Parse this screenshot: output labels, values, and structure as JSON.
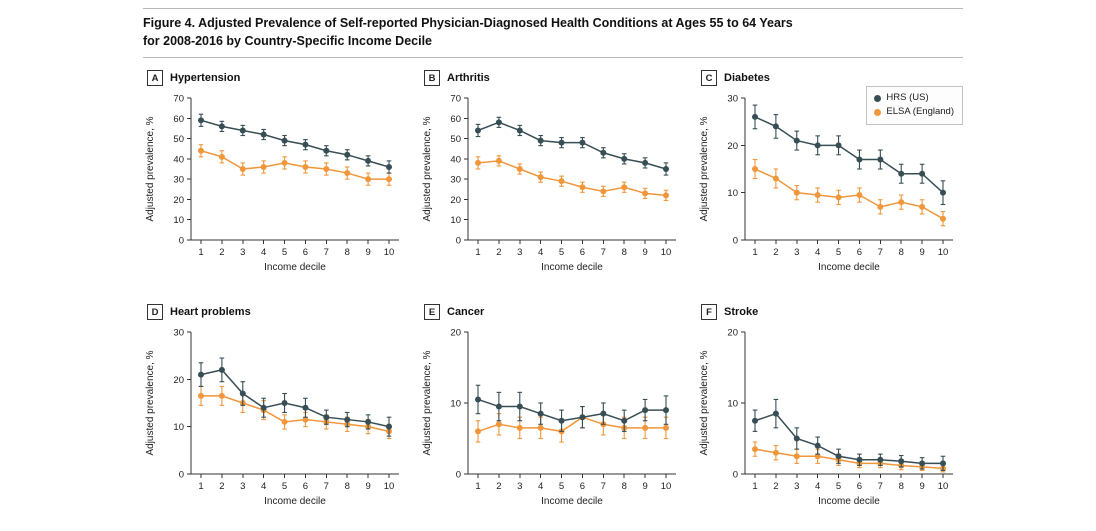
{
  "figure": {
    "title_line1": "Figure 4. Adjusted Prevalence of Self-reported Physician-Diagnosed Health Conditions at Ages 55 to 64 Years",
    "title_line2": "for 2008-2016 by Country-Specific Income Decile"
  },
  "colors": {
    "hrs": "#374E55",
    "elsa": "#F0973C"
  },
  "legend": {
    "items": [
      {
        "label": "HRS (US)",
        "color": "#374E55"
      },
      {
        "label": "ELSA (England)",
        "color": "#F0973C"
      }
    ]
  },
  "chart_data": [
    {
      "type": "line",
      "panel": "A",
      "title": "Hypertension",
      "xlabel": "Income decile",
      "ylabel": "Adjusted prevalence, %",
      "x": [
        1,
        2,
        3,
        4,
        5,
        6,
        7,
        8,
        9,
        10
      ],
      "ylim": [
        0,
        70
      ],
      "ytick_step": 10,
      "series": [
        {
          "name": "HRS (US)",
          "color": "#374E55",
          "values": [
            59,
            56,
            54,
            52,
            49,
            47,
            44,
            42,
            39,
            36
          ],
          "err": [
            3,
            2.5,
            2.5,
            2.5,
            2.5,
            2.5,
            2.5,
            2.5,
            2.5,
            3
          ]
        },
        {
          "name": "ELSA (England)",
          "color": "#F0973C",
          "values": [
            44,
            41,
            35,
            36,
            38,
            36,
            35,
            33,
            30,
            30
          ],
          "err": [
            3,
            3,
            3,
            3,
            3,
            3,
            3,
            3,
            3,
            3
          ]
        }
      ]
    },
    {
      "type": "line",
      "panel": "B",
      "title": "Arthritis",
      "xlabel": "Income decile",
      "ylabel": "Adjusted prevalence, %",
      "x": [
        1,
        2,
        3,
        4,
        5,
        6,
        7,
        8,
        9,
        10
      ],
      "ylim": [
        0,
        70
      ],
      "ytick_step": 10,
      "series": [
        {
          "name": "HRS (US)",
          "color": "#374E55",
          "values": [
            54,
            58,
            54,
            49,
            48,
            48,
            43,
            40,
            38,
            35
          ],
          "err": [
            3,
            2.5,
            2.5,
            2.5,
            2.5,
            2.5,
            2.5,
            2.5,
            2.5,
            3
          ]
        },
        {
          "name": "ELSA (England)",
          "color": "#F0973C",
          "values": [
            38,
            39,
            35,
            31,
            29,
            26,
            24,
            26,
            23,
            22
          ],
          "err": [
            3,
            2.5,
            2.5,
            2.5,
            2.5,
            2.5,
            2.5,
            2.5,
            2.5,
            2.5
          ]
        }
      ]
    },
    {
      "type": "line",
      "panel": "C",
      "title": "Diabetes",
      "xlabel": "Income decile",
      "ylabel": "Adjusted prevalence, %",
      "x": [
        1,
        2,
        3,
        4,
        5,
        6,
        7,
        8,
        9,
        10
      ],
      "ylim": [
        0,
        30
      ],
      "ytick_step": 10,
      "legend": true,
      "series": [
        {
          "name": "HRS (US)",
          "color": "#374E55",
          "values": [
            26,
            24,
            21,
            20,
            20,
            17,
            17,
            14,
            14,
            10
          ],
          "err": [
            2.5,
            2.5,
            2,
            2,
            2,
            2,
            2,
            2,
            2,
            2.5
          ]
        },
        {
          "name": "ELSA (England)",
          "color": "#F0973C",
          "values": [
            15,
            13,
            10,
            9.5,
            9,
            9.5,
            7,
            8,
            7,
            4.5
          ],
          "err": [
            2,
            2,
            1.5,
            1.5,
            1.5,
            1.5,
            1.5,
            1.5,
            1.5,
            1.5
          ]
        }
      ]
    },
    {
      "type": "line",
      "panel": "D",
      "title": "Heart problems",
      "xlabel": "Income decile",
      "ylabel": "Adjusted prevalence, %",
      "x": [
        1,
        2,
        3,
        4,
        5,
        6,
        7,
        8,
        9,
        10
      ],
      "ylim": [
        0,
        30
      ],
      "ytick_step": 10,
      "series": [
        {
          "name": "HRS (US)",
          "color": "#374E55",
          "values": [
            21,
            22,
            17,
            14,
            15,
            14,
            12,
            11.5,
            11,
            10
          ],
          "err": [
            2.5,
            2.5,
            2.5,
            2,
            2,
            2,
            1.5,
            1.5,
            1.5,
            2
          ]
        },
        {
          "name": "ELSA (England)",
          "color": "#F0973C",
          "values": [
            16.5,
            16.5,
            15,
            13.5,
            11,
            11.5,
            11,
            10.5,
            10,
            9
          ],
          "err": [
            2,
            2,
            2,
            2,
            1.5,
            1.5,
            1.5,
            1.5,
            1.5,
            1.5
          ]
        }
      ]
    },
    {
      "type": "line",
      "panel": "E",
      "title": "Cancer",
      "xlabel": "Income decile",
      "ylabel": "Adjusted prevalence, %",
      "x": [
        1,
        2,
        3,
        4,
        5,
        6,
        7,
        8,
        9,
        10
      ],
      "ylim": [
        0,
        20
      ],
      "ytick_step": 10,
      "series": [
        {
          "name": "HRS (US)",
          "color": "#374E55",
          "values": [
            10.5,
            9.5,
            9.5,
            8.5,
            7.5,
            8,
            8.5,
            7.5,
            9,
            9
          ],
          "err": [
            2,
            2,
            2,
            1.5,
            1.5,
            1.5,
            1.5,
            1.5,
            1.5,
            2
          ]
        },
        {
          "name": "ELSA (England)",
          "color": "#F0973C",
          "values": [
            6,
            7,
            6.5,
            6.5,
            6,
            8,
            7,
            6.5,
            6.5,
            6.5
          ],
          "err": [
            1.5,
            1.5,
            1.5,
            1.5,
            1.5,
            1.5,
            1.5,
            1.5,
            1.5,
            1.5
          ]
        }
      ]
    },
    {
      "type": "line",
      "panel": "F",
      "title": "Stroke",
      "xlabel": "Income decile",
      "ylabel": "Adjusted prevalence, %",
      "x": [
        1,
        2,
        3,
        4,
        5,
        6,
        7,
        8,
        9,
        10
      ],
      "ylim": [
        0,
        20
      ],
      "ytick_step": 10,
      "series": [
        {
          "name": "HRS (US)",
          "color": "#374E55",
          "values": [
            7.5,
            8.5,
            5,
            4,
            2.5,
            2,
            2,
            1.8,
            1.5,
            1.5
          ],
          "err": [
            1.5,
            2,
            1.5,
            1.2,
            1,
            0.8,
            0.8,
            0.8,
            0.8,
            1
          ]
        },
        {
          "name": "ELSA (England)",
          "color": "#F0973C",
          "values": [
            3.5,
            3,
            2.5,
            2.5,
            2,
            1.5,
            1.5,
            1.2,
            1,
            0.8
          ],
          "err": [
            1,
            1,
            1,
            1,
            0.8,
            0.6,
            0.6,
            0.6,
            0.5,
            0.5
          ]
        }
      ]
    }
  ]
}
